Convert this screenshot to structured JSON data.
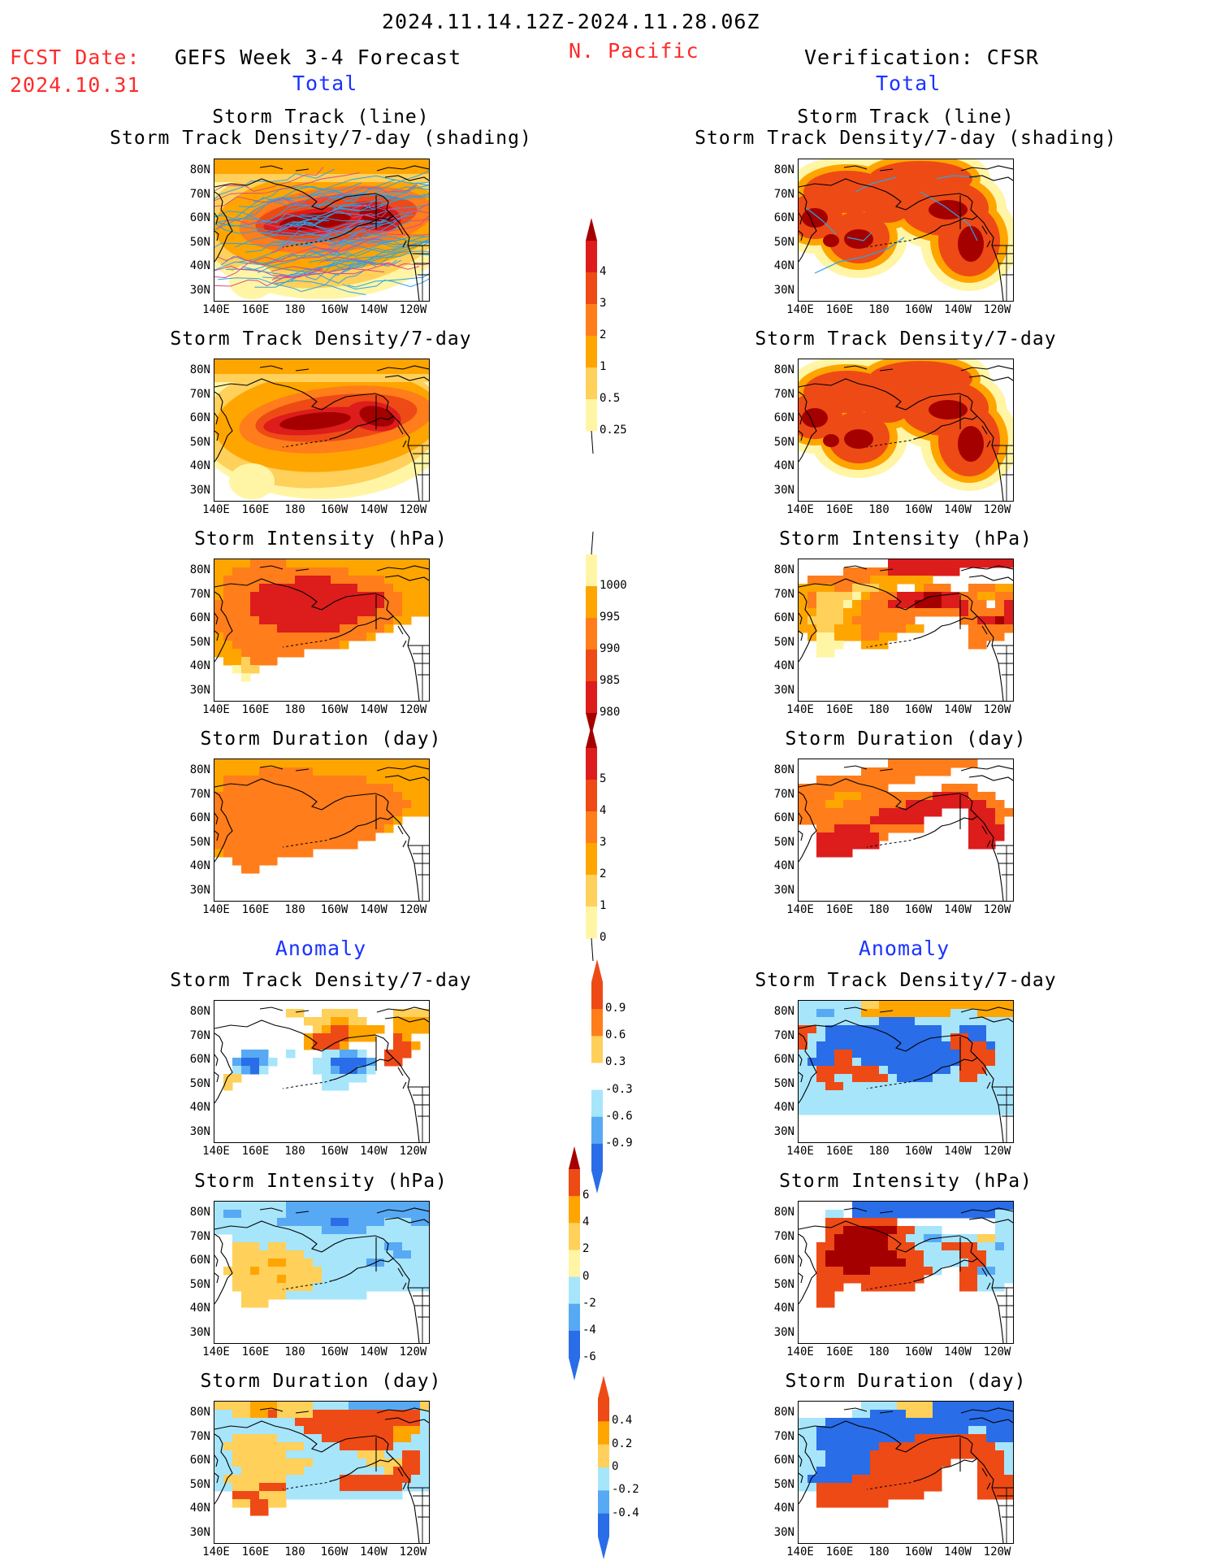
{
  "header": {
    "date_range": "2024.11.14.12Z-2024.11.28.06Z",
    "fcst_date_label": "FCST Date:",
    "fcst_date_value": "2024.10.31",
    "forecast_title": "GEFS Week 3-4 Forecast",
    "region": "N. Pacific",
    "verification_title": "Verification: CFSR"
  },
  "columns": {
    "left_total": "Total",
    "right_total": "Total",
    "left_anomaly": "Anomaly",
    "right_anomaly": "Anomaly"
  },
  "panel_titles": {
    "track_line": "Storm Track (line)",
    "track_density_shading": "Storm Track Density/7-day (shading)",
    "track_density": "Storm Track Density/7-day",
    "intensity": "Storm Intensity (hPa)",
    "duration": "Storm Duration (day)"
  },
  "axes": {
    "lat_ticks": [
      "80N",
      "70N",
      "60N",
      "50N",
      "40N",
      "30N"
    ],
    "lon_ticks": [
      "140E",
      "160E",
      "180",
      "160W",
      "140W",
      "120W"
    ]
  },
  "colorbars": {
    "density": [
      "4",
      "3",
      "2",
      "1",
      "0.5",
      "0.25"
    ],
    "intensity": [
      "1000",
      "995",
      "990",
      "985",
      "980"
    ],
    "duration": [
      "5",
      "4",
      "3",
      "2",
      "1",
      "0"
    ],
    "density_anom": [
      "0.9",
      "0.6",
      "0.3",
      "-0.3",
      "-0.6",
      "-0.9"
    ],
    "intensity_anom": [
      "6",
      "4",
      "2",
      "0",
      "-2",
      "-4",
      "-6"
    ],
    "duration_anom": [
      "0.4",
      "0.2",
      "0",
      "-0.2",
      "-0.4"
    ]
  },
  "colors": {
    "darkred": "#a50000",
    "red": "#dd1c1c",
    "redorange": "#ee4a16",
    "orange": "#ff7d1a",
    "lightorange": "#ffa500",
    "yellow": "#ffd05a",
    "paleyellow": "#fff5a5",
    "lightblue": "#a7e5fb",
    "midblue": "#57a9f4",
    "blue": "#2a6de8",
    "track": "#2aa3e8"
  }
}
